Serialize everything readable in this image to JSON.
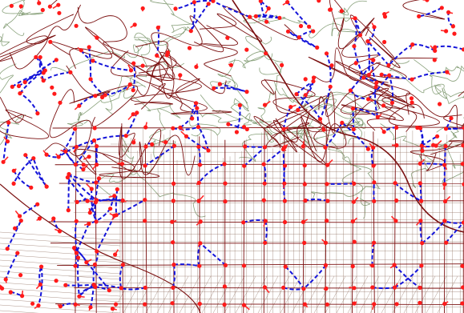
{
  "map": {
    "background": "#ffffff",
    "colors": {
      "street_grid": "#7a0f0f",
      "contour": "#6b8a5a",
      "parcel": "#8c6a5a",
      "route_dashed": "#1414d9",
      "node": "#ff1a1a",
      "node_link": "#ff2a2a"
    },
    "layers": [
      "contour-lines",
      "parcel-grid",
      "street-network",
      "dashed-routes",
      "intersection-nodes"
    ]
  }
}
